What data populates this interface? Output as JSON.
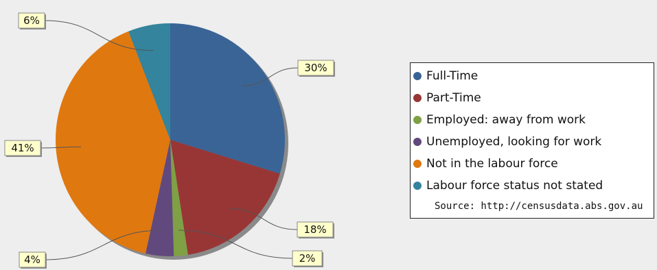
{
  "chart_data": {
    "type": "pie",
    "start_angle_deg": 90,
    "direction": "clockwise",
    "slices": [
      {
        "label": "Full-Time",
        "value": 30,
        "display": "30%",
        "color": "#3a6496"
      },
      {
        "label": "Part-Time",
        "value": 18,
        "display": "18%",
        "color": "#983636"
      },
      {
        "label": "Employed: away from work",
        "value": 2,
        "display": "2%",
        "color": "#7fa044"
      },
      {
        "label": "Unemployed, looking for work",
        "value": 4,
        "display": "4%",
        "color": "#61497e"
      },
      {
        "label": "Not in the labour force",
        "value": 41,
        "display": "41%",
        "color": "#e07810"
      },
      {
        "label": "Labour force status not stated",
        "value": 6,
        "display": "6%",
        "color": "#33849c"
      }
    ],
    "legend_placement": "right",
    "source": "Source: http://censusdata.abs.gov.au"
  }
}
